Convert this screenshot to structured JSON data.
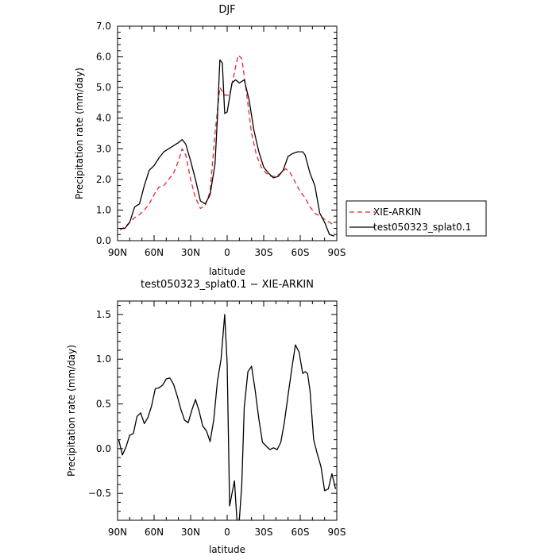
{
  "chart_data": [
    {
      "type": "line",
      "title": "DJF",
      "xlabel": "latitude",
      "ylabel": "Precipitation rate (mm/day)",
      "xlim": [
        90,
        -90
      ],
      "ylim": [
        0,
        7
      ],
      "x_tick_values": [
        90,
        60,
        30,
        0,
        -30,
        -60,
        -90
      ],
      "x_tick_labels": [
        "90N",
        "60N",
        "30N",
        "0",
        "30S",
        "60S",
        "90S"
      ],
      "y_tick_values": [
        0,
        1,
        2,
        3,
        4,
        5,
        6,
        7
      ],
      "y_tick_labels": [
        "0.0",
        "1.0",
        "2.0",
        "3.0",
        "4.0",
        "5.0",
        "6.0",
        "7.0"
      ],
      "legend": "right",
      "series": [
        {
          "name": "XIE-ARKIN",
          "color": "#e8262b",
          "dash": "dashed",
          "x": [
            88,
            84,
            80,
            76,
            72,
            68,
            64,
            60,
            56,
            52,
            48,
            44,
            40,
            37,
            34,
            30,
            26,
            22,
            18,
            14,
            10,
            6,
            2,
            -2,
            -6,
            -9,
            -12,
            -16,
            -20,
            -24,
            -28,
            -32,
            -36,
            -40,
            -44,
            -48,
            -52,
            -56,
            -60,
            -64,
            -68,
            -72,
            -76,
            -80,
            -84,
            -88
          ],
          "y": [
            0.35,
            0.45,
            0.6,
            0.75,
            0.85,
            1.0,
            1.2,
            1.5,
            1.75,
            1.8,
            2.0,
            2.2,
            2.6,
            3.0,
            2.8,
            2.0,
            1.4,
            1.05,
            1.15,
            1.6,
            3.5,
            5.0,
            4.75,
            4.75,
            5.5,
            6.05,
            5.95,
            4.8,
            3.5,
            2.8,
            2.4,
            2.2,
            2.1,
            2.1,
            2.2,
            2.35,
            2.2,
            1.9,
            1.6,
            1.4,
            1.1,
            0.9,
            0.8,
            0.7,
            0.6,
            0.5
          ]
        },
        {
          "name": "test050323_splat0.1",
          "color": "#000000",
          "dash": "solid",
          "x": [
            88,
            84,
            80,
            76,
            72,
            68,
            64,
            60,
            56,
            52,
            48,
            44,
            40,
            37,
            34,
            30,
            26,
            22,
            18,
            14,
            10,
            8,
            6,
            4,
            2,
            0,
            -4,
            -7,
            -10,
            -14,
            -18,
            -22,
            -26,
            -30,
            -34,
            -38,
            -42,
            -46,
            -50,
            -54,
            -58,
            -62,
            -64,
            -68,
            -72,
            -76,
            -80,
            -84,
            -88
          ],
          "y": [
            0.4,
            0.4,
            0.6,
            1.1,
            1.2,
            1.8,
            2.3,
            2.45,
            2.7,
            2.9,
            3.0,
            3.1,
            3.2,
            3.3,
            3.15,
            2.6,
            2.0,
            1.3,
            1.2,
            1.5,
            2.5,
            4.0,
            5.9,
            5.8,
            4.15,
            4.2,
            5.15,
            5.25,
            5.15,
            5.25,
            4.6,
            3.6,
            2.9,
            2.4,
            2.2,
            2.05,
            2.1,
            2.3,
            2.75,
            2.85,
            2.9,
            2.9,
            2.8,
            2.2,
            1.8,
            0.9,
            0.6,
            0.2,
            0.15
          ]
        }
      ]
    },
    {
      "type": "line",
      "title": "test050323_splat0.1 − XIE-ARKIN",
      "xlabel": "latitude",
      "ylabel": "Precipitation rate (mm/day)",
      "xlim": [
        90,
        -90
      ],
      "ylim": [
        -0.8,
        1.65
      ],
      "x_tick_values": [
        90,
        60,
        30,
        0,
        -30,
        -60,
        -90
      ],
      "x_tick_labels": [
        "90N",
        "60N",
        "30N",
        "0",
        "30S",
        "60S",
        "90S"
      ],
      "y_tick_values": [
        -0.5,
        0,
        0.5,
        1,
        1.5
      ],
      "y_tick_labels": [
        "−0.5",
        "0.0",
        "0.5",
        "1.0",
        "1.5"
      ],
      "series": [
        {
          "color": "#000000",
          "dash": "solid",
          "x": [
            89,
            86,
            83,
            80,
            77,
            74,
            71,
            68,
            65,
            62,
            59,
            56,
            53,
            50,
            47,
            44,
            41,
            38,
            35,
            32,
            29,
            26,
            23,
            20,
            17,
            14,
            11,
            8,
            5,
            2,
            0,
            -2,
            -4,
            -6,
            -8,
            -10,
            -12,
            -14,
            -17,
            -20,
            -23,
            -26,
            -29,
            -32,
            -35,
            -38,
            -41,
            -44,
            -47,
            -50,
            -53,
            -56,
            -59,
            -62,
            -64,
            -66,
            -68,
            -71,
            -74,
            -77,
            -80,
            -83,
            -86,
            -89
          ],
          "y": [
            0.1,
            -0.07,
            0.02,
            0.15,
            0.17,
            0.36,
            0.4,
            0.28,
            0.35,
            0.48,
            0.67,
            0.68,
            0.71,
            0.78,
            0.79,
            0.72,
            0.59,
            0.44,
            0.32,
            0.29,
            0.43,
            0.55,
            0.42,
            0.25,
            0.2,
            0.08,
            0.32,
            0.75,
            1.0,
            1.5,
            0.95,
            -0.64,
            -0.5,
            -0.36,
            -0.8,
            -0.8,
            -0.4,
            0.46,
            0.86,
            0.92,
            0.65,
            0.33,
            0.07,
            0.03,
            -0.01,
            0.01,
            -0.01,
            0.07,
            0.3,
            0.6,
            0.89,
            1.16,
            1.08,
            0.84,
            0.86,
            0.84,
            0.65,
            0.1,
            -0.06,
            -0.2,
            -0.47,
            -0.45,
            -0.28,
            -0.45
          ]
        }
      ]
    }
  ]
}
